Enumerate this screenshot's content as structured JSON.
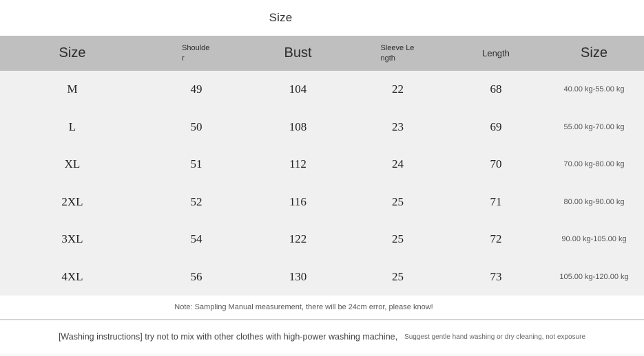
{
  "page": {
    "title": "Size"
  },
  "table": {
    "columns": {
      "size": "Size",
      "shoulder": "Shoulder",
      "bust": "Bust",
      "sleeve_length": "Sleeve Length",
      "length": "Length",
      "weight": "Size"
    },
    "rows": [
      {
        "size": "M",
        "shoulder": "49",
        "bust": "104",
        "sleeve_length": "22",
        "length": "68",
        "weight": "40.00 kg-55.00 kg"
      },
      {
        "size": "L",
        "shoulder": "50",
        "bust": "108",
        "sleeve_length": "23",
        "length": "69",
        "weight": "55.00 kg-70.00 kg"
      },
      {
        "size": "XL",
        "shoulder": "51",
        "bust": "112",
        "sleeve_length": "24",
        "length": "70",
        "weight": "70.00 kg-80.00 kg"
      },
      {
        "size": "2XL",
        "shoulder": "52",
        "bust": "116",
        "sleeve_length": "25",
        "length": "71",
        "weight": "80.00 kg-90.00 kg"
      },
      {
        "size": "3XL",
        "shoulder": "54",
        "bust": "122",
        "sleeve_length": "25",
        "length": "72",
        "weight": "90.00 kg-105.00 kg"
      },
      {
        "size": "4XL",
        "shoulder": "56",
        "bust": "130",
        "sleeve_length": "25",
        "length": "73",
        "weight": "105.00 kg-120.00 kg"
      }
    ]
  },
  "notes": {
    "measurement": "Note: Sampling Manual measurement, there will be 24cm error, please know!",
    "washing_main": "[Washing instructions] try not to mix with other clothes with high-power washing machine,",
    "washing_sub": "Suggest gentle hand washing or dry cleaning, not exposure"
  },
  "colors": {
    "header_background": "#bfbfbf",
    "body_background": "#f0f0f0",
    "page_background": "#ffffff",
    "data_text": "#222222",
    "note_text": "#595959"
  }
}
